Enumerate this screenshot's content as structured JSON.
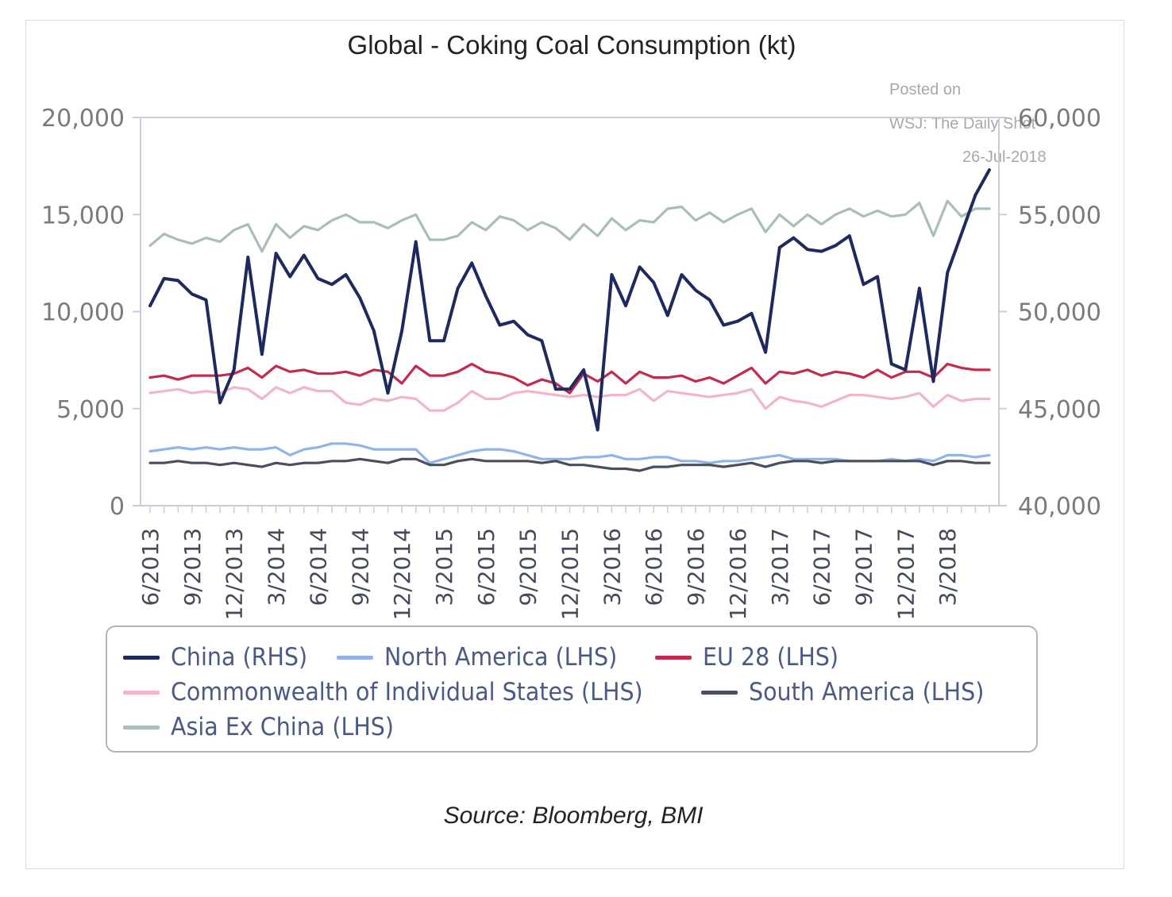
{
  "chart_data": {
    "type": "line",
    "title": "Global - Coking Coal Consumption (kt)",
    "watermark": [
      "Posted on",
      "WSJ: The Daily Shot",
      "26-Jul-2018"
    ],
    "source": "Source: Bloomberg, BMI",
    "left_axis": {
      "ylim": [
        0,
        20000
      ],
      "ticks": [
        "0",
        "5,000",
        "10,000",
        "15,000",
        "20,000"
      ],
      "values": [
        0,
        5000,
        10000,
        15000,
        20000
      ]
    },
    "right_axis": {
      "ylim": [
        40000,
        60000
      ],
      "ticks": [
        "40,000",
        "45,000",
        "50,000",
        "55,000",
        "60,000"
      ],
      "values": [
        40000,
        45000,
        50000,
        55000,
        60000
      ]
    },
    "x_tick_labels": [
      "6/2013",
      "9/2013",
      "12/2013",
      "3/2014",
      "6/2014",
      "9/2014",
      "12/2014",
      "3/2015",
      "6/2015",
      "9/2015",
      "12/2015",
      "3/2016",
      "6/2016",
      "9/2016",
      "12/2016",
      "3/2017",
      "6/2017",
      "9/2017",
      "12/2017",
      "3/2018"
    ],
    "x_count": 61,
    "series": [
      {
        "name": "Asia Ex China (LHS)",
        "axis": "left",
        "color": "#a9bfb3",
        "values": [
          13400,
          14000,
          13700,
          13500,
          13800,
          13600,
          14200,
          14500,
          13100,
          14500,
          13800,
          14400,
          14200,
          14700,
          15000,
          14600,
          14600,
          14300,
          14700,
          15000,
          13700,
          13700,
          13900,
          14600,
          14200,
          14900,
          14700,
          14200,
          14600,
          14300,
          13700,
          14500,
          13900,
          14800,
          14200,
          14700,
          14600,
          15300,
          15400,
          14700,
          15100,
          14600,
          15000,
          15300,
          14100,
          15000,
          14400,
          15000,
          14500,
          15000,
          15300,
          14900,
          15200,
          14900,
          15000,
          15600,
          13900,
          15700,
          14900,
          15300,
          15300
        ]
      },
      {
        "name": "EU 28 (LHS)",
        "axis": "left",
        "color": "#c42a4e",
        "values": [
          6600,
          6700,
          6500,
          6700,
          6700,
          6700,
          6800,
          7100,
          6600,
          7200,
          6900,
          7000,
          6800,
          6800,
          6900,
          6700,
          7000,
          6900,
          6300,
          7200,
          6700,
          6700,
          6900,
          7300,
          6900,
          6800,
          6600,
          6200,
          6500,
          6300,
          5800,
          6800,
          6400,
          6900,
          6300,
          6900,
          6600,
          6600,
          6700,
          6400,
          6600,
          6300,
          6700,
          7100,
          6300,
          6900,
          6800,
          7000,
          6700,
          6900,
          6800,
          6600,
          7000,
          6600,
          6900,
          6900,
          6600,
          7300,
          7100,
          7000,
          7000
        ]
      },
      {
        "name": "Commonwealth of Individual States (LHS)",
        "axis": "left",
        "color": "#f2b5c5",
        "values": [
          5800,
          5900,
          6000,
          5800,
          5900,
          5800,
          6100,
          6000,
          5500,
          6100,
          5800,
          6100,
          5900,
          5900,
          5300,
          5200,
          5500,
          5400,
          5600,
          5500,
          4900,
          4900,
          5300,
          5900,
          5500,
          5500,
          5800,
          5900,
          5800,
          5700,
          5600,
          5700,
          5600,
          5700,
          5700,
          6000,
          5400,
          5900,
          5800,
          5700,
          5600,
          5700,
          5800,
          6000,
          5000,
          5600,
          5400,
          5300,
          5100,
          5400,
          5700,
          5700,
          5600,
          5500,
          5600,
          5800,
          5100,
          5700,
          5400,
          5500,
          5500
        ]
      },
      {
        "name": "North America (LHS)",
        "axis": "left",
        "color": "#8fb3ea",
        "values": [
          2800,
          2900,
          3000,
          2900,
          3000,
          2900,
          3000,
          2900,
          2900,
          3000,
          2600,
          2900,
          3000,
          3200,
          3200,
          3100,
          2900,
          2900,
          2900,
          2900,
          2200,
          2400,
          2600,
          2800,
          2900,
          2900,
          2800,
          2600,
          2400,
          2400,
          2400,
          2500,
          2500,
          2600,
          2400,
          2400,
          2500,
          2500,
          2300,
          2300,
          2200,
          2300,
          2300,
          2400,
          2500,
          2600,
          2400,
          2400,
          2400,
          2400,
          2300,
          2300,
          2300,
          2400,
          2300,
          2400,
          2300,
          2600,
          2600,
          2500,
          2600
        ]
      },
      {
        "name": "South America (LHS)",
        "axis": "left",
        "color": "#4a4f5c",
        "values": [
          2200,
          2200,
          2300,
          2200,
          2200,
          2100,
          2200,
          2100,
          2000,
          2200,
          2100,
          2200,
          2200,
          2300,
          2300,
          2400,
          2300,
          2200,
          2400,
          2400,
          2100,
          2100,
          2300,
          2400,
          2300,
          2300,
          2300,
          2300,
          2200,
          2300,
          2100,
          2100,
          2000,
          1900,
          1900,
          1800,
          2000,
          2000,
          2100,
          2100,
          2100,
          2000,
          2100,
          2200,
          2000,
          2200,
          2300,
          2300,
          2200,
          2300,
          2300,
          2300,
          2300,
          2300,
          2300,
          2300,
          2100,
          2300,
          2300,
          2200,
          2200
        ]
      },
      {
        "name": "China (RHS)",
        "axis": "right",
        "color": "#1e2a5e",
        "values": [
          50300,
          51700,
          51600,
          50900,
          50600,
          45300,
          47000,
          52800,
          47800,
          53000,
          51800,
          52900,
          51700,
          51400,
          51900,
          50700,
          49000,
          45800,
          49000,
          53600,
          48500,
          48500,
          51200,
          52500,
          50800,
          49300,
          49500,
          48800,
          48500,
          46000,
          46000,
          47000,
          43900,
          51900,
          50300,
          52300,
          51500,
          49800,
          51900,
          51100,
          50600,
          49300,
          49500,
          49900,
          47900,
          53300,
          53800,
          53200,
          53100,
          53400,
          53900,
          51400,
          51800,
          47300,
          47000,
          51200,
          46400,
          52000,
          54000,
          56000,
          57300
        ]
      }
    ],
    "legend": [
      [
        "China (RHS)",
        "North America (LHS)",
        "EU 28 (LHS)"
      ],
      [
        "Commonwealth of Individual States (LHS)",
        "South America (LHS)"
      ],
      [
        "Asia Ex China (LHS)"
      ]
    ]
  },
  "colors": {
    "axis": "#c8cdd8",
    "frame_border": "#dcdcdc",
    "legend_border": "#b5b5b5"
  }
}
